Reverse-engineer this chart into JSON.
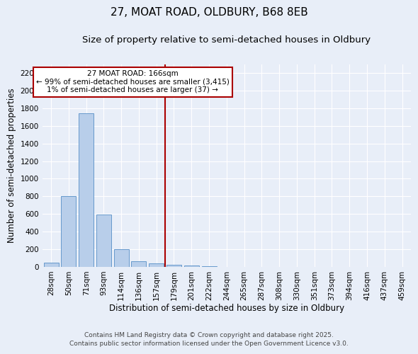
{
  "title": "27, MOAT ROAD, OLDBURY, B68 8EB",
  "subtitle": "Size of property relative to semi-detached houses in Oldbury",
  "xlabel": "Distribution of semi-detached houses by size in Oldbury",
  "ylabel": "Number of semi-detached properties",
  "bar_labels": [
    "28sqm",
    "50sqm",
    "71sqm",
    "93sqm",
    "114sqm",
    "136sqm",
    "157sqm",
    "179sqm",
    "201sqm",
    "222sqm",
    "244sqm",
    "265sqm",
    "287sqm",
    "308sqm",
    "330sqm",
    "351sqm",
    "373sqm",
    "394sqm",
    "416sqm",
    "437sqm",
    "459sqm"
  ],
  "bar_values": [
    50,
    800,
    1740,
    590,
    200,
    60,
    40,
    25,
    15,
    5,
    2,
    1,
    1,
    0,
    0,
    0,
    0,
    0,
    0,
    0,
    0
  ],
  "bar_color": "#b8ceea",
  "bar_edge_color": "#6699cc",
  "background_color": "#e8eef8",
  "grid_color": "#ffffff",
  "vline_x": 7.0,
  "vline_color": "#aa0000",
  "annotation_text": "27 MOAT ROAD: 166sqm\n← 99% of semi-detached houses are smaller (3,415)\n1% of semi-detached houses are larger (37) →",
  "annotation_box_facecolor": "#ffffff",
  "annotation_box_edgecolor": "#aa0000",
  "ylim": [
    0,
    2300
  ],
  "yticks": [
    0,
    200,
    400,
    600,
    800,
    1000,
    1200,
    1400,
    1600,
    1800,
    2000,
    2200
  ],
  "title_fontsize": 11,
  "subtitle_fontsize": 9.5,
  "axis_label_fontsize": 8.5,
  "tick_fontsize": 7.5,
  "footer_text": "Contains HM Land Registry data © Crown copyright and database right 2025.\nContains public sector information licensed under the Open Government Licence v3.0.",
  "footer_fontsize": 6.5
}
